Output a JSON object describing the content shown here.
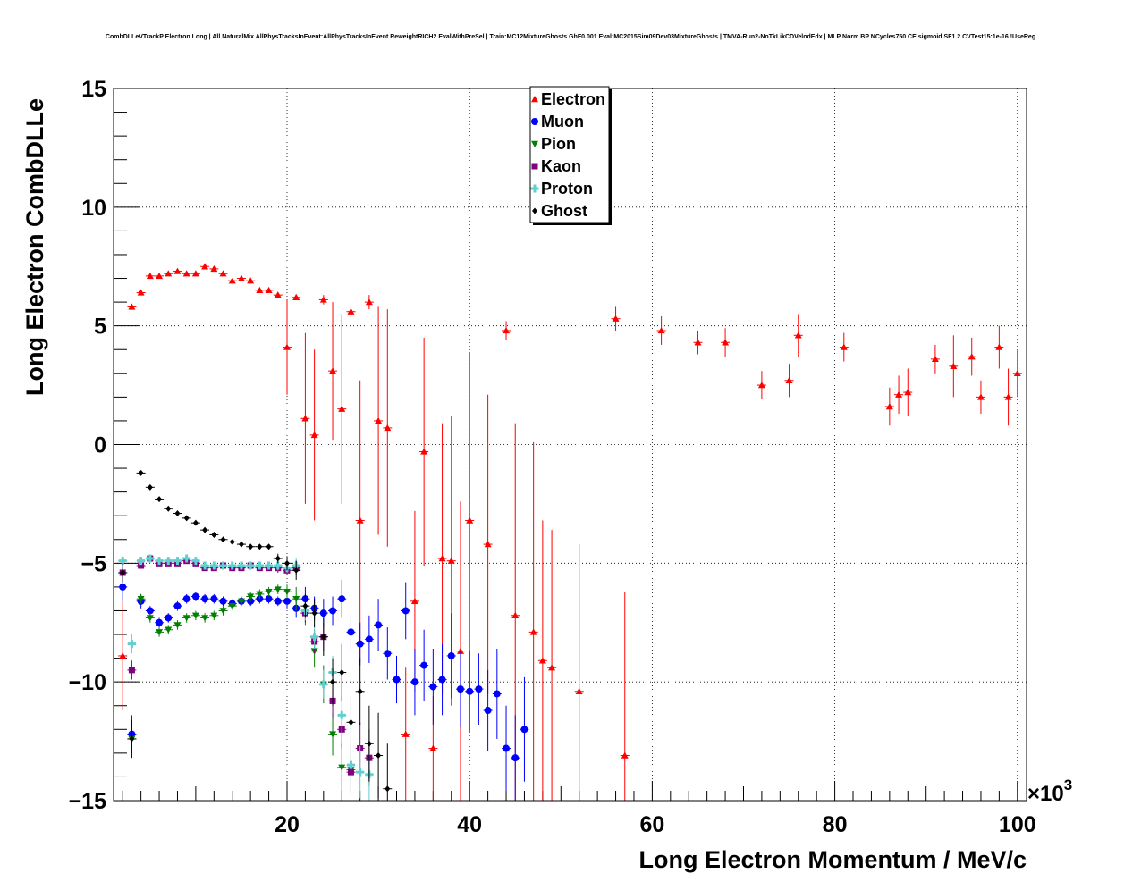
{
  "chart_data": {
    "type": "scatter",
    "title": "CombDLLeVTrackP Electron Long | All NaturalMix AllPhysTracksInEvent:AllPhysTracksInEvent ReweightRICH2 EvalWithPreSel | Train:MC12MixtureGhosts GhF0.001 Eval:MC2015Sim09Dev03MixtureGhosts | TMVA-Run2-NoTkLikCDVelodEdx | MLP Norm BP NCycles750 CE sigmoid SF1.2 CVTest15:1e-16 !UseReg",
    "xlabel": "Long Electron Momentum / MeV/c",
    "ylabel": "Long Electron CombDLLe",
    "x_exponent": "×10",
    "x_exponent_power": "3",
    "xlim": [
      1,
      101
    ],
    "ylim": [
      -15,
      15
    ],
    "xticks": [
      20,
      40,
      60,
      80,
      100
    ],
    "yticks": [
      -15,
      -10,
      -5,
      0,
      5,
      10,
      15
    ],
    "xtick_labels": [
      "20",
      "40",
      "60",
      "80",
      "100"
    ],
    "ytick_labels": [
      "−15",
      "−10",
      "−5",
      "0",
      "5",
      "10",
      "15"
    ],
    "grid": true,
    "legend_position": "top-center",
    "series": [
      {
        "name": "Electron",
        "color": "#ff0000",
        "marker": "triangle-up",
        "points": [
          [
            2,
            -8.9,
            2.3
          ],
          [
            3,
            5.8,
            0.1
          ],
          [
            4,
            6.4,
            0.1
          ],
          [
            5,
            7.1,
            0.1
          ],
          [
            6,
            7.1,
            0.1
          ],
          [
            7,
            7.2,
            0.1
          ],
          [
            8,
            7.3,
            0.1
          ],
          [
            9,
            7.2,
            0.1
          ],
          [
            10,
            7.2,
            0.1
          ],
          [
            11,
            7.5,
            0.1
          ],
          [
            12,
            7.4,
            0.1
          ],
          [
            13,
            7.2,
            0.1
          ],
          [
            14,
            6.9,
            0.1
          ],
          [
            15,
            7.0,
            0.1
          ],
          [
            16,
            6.9,
            0.1
          ],
          [
            17,
            6.5,
            0.1
          ],
          [
            18,
            6.5,
            0.1
          ],
          [
            19,
            6.3,
            0.1
          ],
          [
            20,
            4.1,
            2.0
          ],
          [
            21,
            6.2,
            0.1
          ],
          [
            22,
            1.1,
            3.6
          ],
          [
            23,
            0.4,
            3.6
          ],
          [
            24,
            6.1,
            0.2
          ],
          [
            25,
            3.1,
            2.9
          ],
          [
            26,
            1.5,
            4.0
          ],
          [
            27,
            5.6,
            0.3
          ],
          [
            28,
            -3.2,
            5.9
          ],
          [
            29,
            6.0,
            0.3
          ],
          [
            30,
            1.0,
            4.8
          ],
          [
            31,
            0.7,
            5.0
          ],
          [
            33,
            -12.2,
            2.8
          ],
          [
            34,
            -6.6,
            3.8
          ],
          [
            35,
            -0.3,
            4.8
          ],
          [
            36,
            -12.8,
            2.2
          ],
          [
            37,
            -4.8,
            5.7
          ],
          [
            38,
            -4.9,
            6.1
          ],
          [
            39,
            -8.7,
            6.3
          ],
          [
            40,
            -3.2,
            7.1
          ],
          [
            42,
            -4.2,
            6.3
          ],
          [
            44,
            4.8,
            0.4
          ],
          [
            45,
            -7.2,
            8.1
          ],
          [
            47,
            -7.9,
            8.0
          ],
          [
            48,
            -9.1,
            5.9
          ],
          [
            49,
            -9.4,
            5.8
          ],
          [
            52,
            -10.4,
            6.2
          ],
          [
            56,
            5.3,
            0.5
          ],
          [
            57,
            -13.1,
            6.9
          ],
          [
            61,
            4.8,
            0.6
          ],
          [
            65,
            4.3,
            0.5
          ],
          [
            68,
            4.3,
            0.6
          ],
          [
            72,
            2.5,
            0.6
          ],
          [
            75,
            2.7,
            0.7
          ],
          [
            76,
            4.6,
            0.9
          ],
          [
            81,
            4.1,
            0.6
          ],
          [
            86,
            1.6,
            0.8
          ],
          [
            87,
            2.1,
            0.8
          ],
          [
            88,
            2.2,
            1.0
          ],
          [
            91,
            3.6,
            0.6
          ],
          [
            93,
            3.3,
            1.3
          ],
          [
            95,
            3.7,
            0.8
          ],
          [
            96,
            2.0,
            0.7
          ],
          [
            98,
            4.1,
            0.9
          ],
          [
            99,
            2.0,
            1.2
          ],
          [
            100,
            3.0,
            1.0
          ]
        ]
      },
      {
        "name": "Muon",
        "color": "#0000ff",
        "marker": "circle",
        "points": [
          [
            2,
            -6.0,
            0.6
          ],
          [
            3,
            -12.2,
            0.8
          ],
          [
            4,
            -6.6,
            0.3
          ],
          [
            5,
            -7.0,
            0.2
          ],
          [
            6,
            -7.5,
            0.2
          ],
          [
            7,
            -7.3,
            0.2
          ],
          [
            8,
            -6.8,
            0.2
          ],
          [
            9,
            -6.5,
            0.2
          ],
          [
            10,
            -6.4,
            0.2
          ],
          [
            11,
            -6.5,
            0.2
          ],
          [
            12,
            -6.5,
            0.2
          ],
          [
            13,
            -6.6,
            0.2
          ],
          [
            14,
            -6.7,
            0.2
          ],
          [
            15,
            -6.6,
            0.2
          ],
          [
            16,
            -6.6,
            0.2
          ],
          [
            17,
            -6.5,
            0.2
          ],
          [
            18,
            -6.5,
            0.2
          ],
          [
            19,
            -6.6,
            0.2
          ],
          [
            20,
            -6.6,
            0.3
          ],
          [
            21,
            -6.9,
            0.4
          ],
          [
            22,
            -6.5,
            0.5
          ],
          [
            23,
            -6.9,
            0.5
          ],
          [
            24,
            -7.1,
            0.6
          ],
          [
            25,
            -7.0,
            0.6
          ],
          [
            26,
            -6.5,
            0.8
          ],
          [
            27,
            -7.9,
            0.8
          ],
          [
            28,
            -8.4,
            0.9
          ],
          [
            29,
            -8.2,
            1.0
          ],
          [
            30,
            -7.6,
            1.1
          ],
          [
            31,
            -8.8,
            1.1
          ],
          [
            32,
            -9.9,
            1.0
          ],
          [
            33,
            -7.0,
            1.2
          ],
          [
            34,
            -10.0,
            1.4
          ],
          [
            35,
            -9.3,
            1.5
          ],
          [
            36,
            -10.2,
            1.6
          ],
          [
            37,
            -9.9,
            1.5
          ],
          [
            38,
            -8.9,
            1.8
          ],
          [
            39,
            -10.3,
            1.6
          ],
          [
            40,
            -10.4,
            1.7
          ],
          [
            41,
            -10.3,
            1.5
          ],
          [
            42,
            -11.2,
            1.7
          ],
          [
            43,
            -10.5,
            1.9
          ],
          [
            44,
            -12.8,
            1.8
          ],
          [
            45,
            -13.2,
            1.8
          ],
          [
            46,
            -12.0,
            2.2
          ]
        ]
      },
      {
        "name": "Pion",
        "color": "#008000",
        "marker": "triangle-down",
        "points": [
          [
            3,
            -12.4,
            0.5
          ],
          [
            4,
            -6.5,
            0.2
          ],
          [
            5,
            -7.3,
            0.2
          ],
          [
            6,
            -7.9,
            0.2
          ],
          [
            7,
            -7.8,
            0.2
          ],
          [
            8,
            -7.6,
            0.2
          ],
          [
            9,
            -7.3,
            0.2
          ],
          [
            10,
            -7.2,
            0.2
          ],
          [
            11,
            -7.3,
            0.2
          ],
          [
            12,
            -7.2,
            0.2
          ],
          [
            13,
            -7.0,
            0.2
          ],
          [
            14,
            -6.8,
            0.2
          ],
          [
            15,
            -6.6,
            0.2
          ],
          [
            16,
            -6.4,
            0.2
          ],
          [
            17,
            -6.3,
            0.2
          ],
          [
            18,
            -6.2,
            0.2
          ],
          [
            19,
            -6.1,
            0.2
          ],
          [
            20,
            -6.2,
            0.3
          ],
          [
            21,
            -6.5,
            0.5
          ],
          [
            22,
            -7.1,
            0.5
          ],
          [
            23,
            -8.7,
            0.7
          ],
          [
            24,
            -10.1,
            0.8
          ],
          [
            25,
            -12.2,
            0.9
          ],
          [
            26,
            -13.6,
            1.0
          ],
          [
            27,
            -13.7,
            1.0
          ]
        ]
      },
      {
        "name": "Kaon",
        "color": "#800080",
        "marker": "square",
        "points": [
          [
            2,
            -5.4,
            0.2
          ],
          [
            3,
            -9.5,
            0.4
          ],
          [
            4,
            -5.1,
            0.1
          ],
          [
            5,
            -4.8,
            0.1
          ],
          [
            6,
            -5.0,
            0.1
          ],
          [
            7,
            -5.0,
            0.1
          ],
          [
            8,
            -5.0,
            0.1
          ],
          [
            9,
            -4.9,
            0.1
          ],
          [
            10,
            -5.0,
            0.1
          ],
          [
            11,
            -5.2,
            0.1
          ],
          [
            12,
            -5.2,
            0.1
          ],
          [
            13,
            -5.1,
            0.1
          ],
          [
            14,
            -5.2,
            0.1
          ],
          [
            15,
            -5.2,
            0.1
          ],
          [
            16,
            -5.1,
            0.1
          ],
          [
            17,
            -5.2,
            0.1
          ],
          [
            18,
            -5.2,
            0.1
          ],
          [
            19,
            -5.2,
            0.2
          ],
          [
            20,
            -5.3,
            0.2
          ],
          [
            21,
            -5.2,
            0.3
          ],
          [
            22,
            -7.1,
            0.4
          ],
          [
            23,
            -8.3,
            0.5
          ],
          [
            24,
            -8.1,
            0.6
          ],
          [
            25,
            -10.8,
            0.7
          ],
          [
            26,
            -12.0,
            0.8
          ],
          [
            27,
            -13.8,
            1.0
          ],
          [
            28,
            -12.8,
            1.1
          ],
          [
            29,
            -13.2,
            1.2
          ]
        ]
      },
      {
        "name": "Proton",
        "color": "#5fcfcf",
        "marker": "plus",
        "points": [
          [
            2,
            -4.9,
            0.2
          ],
          [
            3,
            -8.4,
            0.4
          ],
          [
            4,
            -4.9,
            0.1
          ],
          [
            5,
            -4.8,
            0.1
          ],
          [
            6,
            -4.9,
            0.1
          ],
          [
            7,
            -4.9,
            0.1
          ],
          [
            8,
            -4.9,
            0.1
          ],
          [
            9,
            -4.8,
            0.1
          ],
          [
            10,
            -4.9,
            0.1
          ],
          [
            11,
            -5.1,
            0.1
          ],
          [
            12,
            -5.1,
            0.1
          ],
          [
            13,
            -5.1,
            0.1
          ],
          [
            14,
            -5.1,
            0.1
          ],
          [
            15,
            -5.1,
            0.1
          ],
          [
            16,
            -5.1,
            0.1
          ],
          [
            17,
            -5.1,
            0.1
          ],
          [
            18,
            -5.1,
            0.1
          ],
          [
            19,
            -5.1,
            0.2
          ],
          [
            20,
            -5.2,
            0.2
          ],
          [
            21,
            -5.1,
            0.3
          ],
          [
            22,
            -7.0,
            0.4
          ],
          [
            23,
            -8.1,
            0.5
          ],
          [
            24,
            -10.1,
            0.6
          ],
          [
            25,
            -9.6,
            0.7
          ],
          [
            26,
            -11.4,
            0.8
          ],
          [
            27,
            -13.5,
            1.0
          ],
          [
            28,
            -13.8,
            1.1
          ],
          [
            29,
            -13.9,
            1.2
          ]
        ]
      },
      {
        "name": "Ghost",
        "color": "#000000",
        "marker": "diamond",
        "points": [
          [
            2,
            -5.4,
            0.4
          ],
          [
            3,
            -12.4,
            0.8
          ],
          [
            4,
            -1.2,
            0.1
          ],
          [
            5,
            -1.8,
            0.1
          ],
          [
            6,
            -2.3,
            0.1
          ],
          [
            7,
            -2.7,
            0.1
          ],
          [
            8,
            -2.9,
            0.1
          ],
          [
            9,
            -3.1,
            0.1
          ],
          [
            10,
            -3.3,
            0.1
          ],
          [
            11,
            -3.6,
            0.1
          ],
          [
            12,
            -3.8,
            0.1
          ],
          [
            13,
            -4.0,
            0.1
          ],
          [
            14,
            -4.1,
            0.1
          ],
          [
            15,
            -4.2,
            0.1
          ],
          [
            16,
            -4.3,
            0.1
          ],
          [
            17,
            -4.3,
            0.1
          ],
          [
            18,
            -4.3,
            0.1
          ],
          [
            19,
            -4.8,
            0.2
          ],
          [
            20,
            -5.0,
            0.3
          ],
          [
            21,
            -5.3,
            0.4
          ],
          [
            22,
            -6.8,
            0.5
          ],
          [
            23,
            -7.1,
            0.6
          ],
          [
            24,
            -8.1,
            0.8
          ],
          [
            25,
            -10.0,
            1.0
          ],
          [
            26,
            -9.6,
            1.2
          ],
          [
            27,
            -11.7,
            1.1
          ],
          [
            28,
            -10.4,
            1.4
          ],
          [
            29,
            -12.6,
            1.6
          ],
          [
            30,
            -13.1,
            1.8
          ],
          [
            31,
            -14.5,
            1.9
          ]
        ]
      }
    ]
  }
}
